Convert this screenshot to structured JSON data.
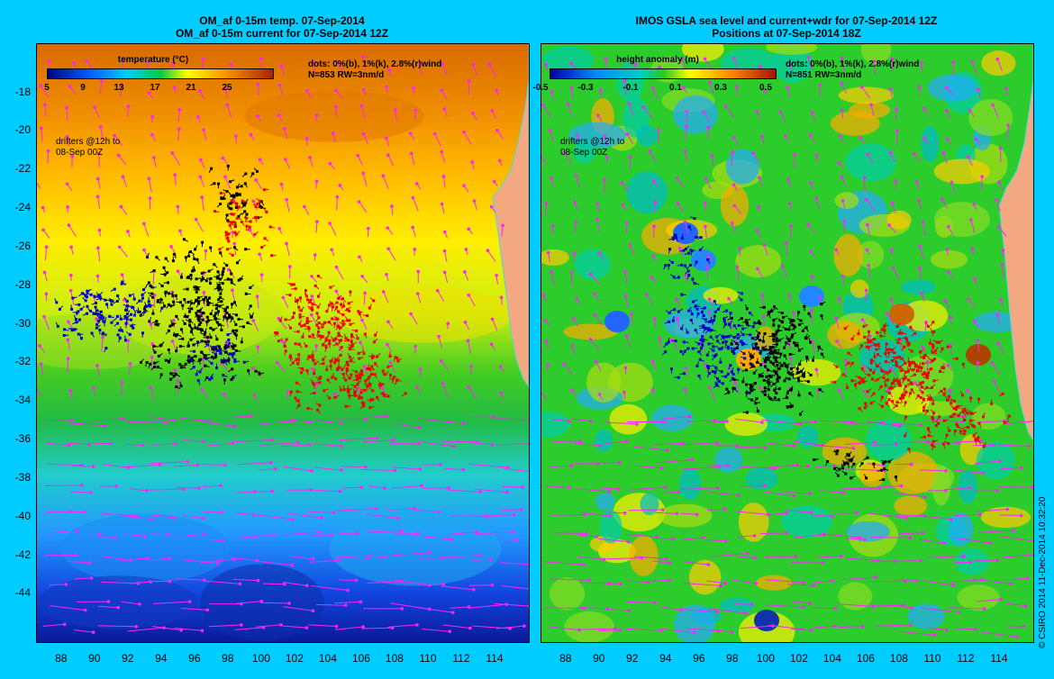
{
  "left": {
    "title1": "OM_af 0-15m temp. 07-Sep-2014",
    "title2": "OM_af 0-15m current for 07-Sep-2014 12Z",
    "colorbar_title": "temperature (°C)",
    "colorbar_ticks": [
      "5",
      "9",
      "13",
      "17",
      "21",
      "25"
    ],
    "stats1": "dots: 0%(b), 1%(k), 2.8%(r)wind",
    "stats2": "N=853 RW=3nm/d",
    "drifter1": "drifters @12h to",
    "drifter2": "08-Sep 00Z"
  },
  "right": {
    "title1": "IMOS GSLA sea level and current+wdr for 07-Sep-2014 12Z",
    "title2": "Positions at 07-Sep-2014 18Z",
    "colorbar_title": "height anomaly (m)",
    "colorbar_ticks": [
      "-0.5",
      "-0.3",
      "-0.1",
      "0.1",
      "0.3",
      "0.5"
    ],
    "stats1": "dots: 0%(b), 1%(k), 2.8%(r)wind",
    "stats2": "N=851 RW=3nm/d",
    "drifter1": "drifters @12h to",
    "drifter2": "08-Sep 00Z"
  },
  "copyright": "© CSIRO 2014   11-Dec-2014 10:32:20",
  "y_ticks": [
    "-18",
    "-20",
    "-22",
    "-24",
    "-26",
    "-28",
    "-30",
    "-32",
    "-34",
    "-36",
    "-38",
    "-40",
    "-42",
    "-44"
  ],
  "x_ticks": [
    "88",
    "90",
    "92",
    "94",
    "96",
    "98",
    "100",
    "102",
    "104",
    "106",
    "108",
    "110",
    "112",
    "114"
  ],
  "map": {
    "lon_range": [
      86.5,
      116
    ],
    "lat_range": [
      -46.5,
      -15.5
    ],
    "colors": {
      "background": "#00ccff",
      "land": "#f4a882",
      "arrow": "#ff22ff",
      "dot_blue": "#0000cc",
      "dot_black": "#000000",
      "dot_red": "#ee0000",
      "coast": "#44dddd"
    }
  }
}
